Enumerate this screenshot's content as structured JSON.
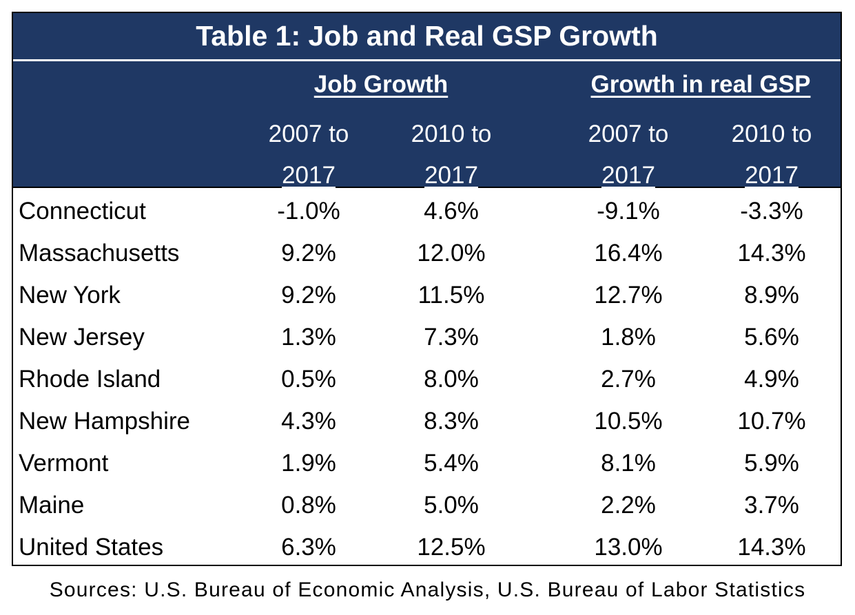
{
  "chart_data": {
    "type": "table",
    "title": "Table 1: Job and Real GSP Growth",
    "groups": [
      {
        "label": "Job Growth",
        "columns": [
          "2007 to 2017",
          "2010 to 2017"
        ]
      },
      {
        "label": "Growth in real GSP",
        "columns": [
          "2007 to 2017",
          "2010 to 2017"
        ]
      }
    ],
    "column_labels": [
      {
        "line1": "2007 to",
        "line2": "2017"
      },
      {
        "line1": "2010 to",
        "line2": "2017"
      },
      {
        "line1": "2007 to",
        "line2": "2017"
      },
      {
        "line1": "2010 to",
        "line2": "2017"
      }
    ],
    "rows": [
      {
        "state": "Connecticut",
        "values": [
          "-1.0%",
          "4.6%",
          "-9.1%",
          "-3.3%"
        ]
      },
      {
        "state": "Massachusetts",
        "values": [
          "9.2%",
          "12.0%",
          "16.4%",
          "14.3%"
        ]
      },
      {
        "state": "New York",
        "values": [
          "9.2%",
          "11.5%",
          "12.7%",
          "8.9%"
        ]
      },
      {
        "state": "New Jersey",
        "values": [
          "1.3%",
          "7.3%",
          "1.8%",
          "5.6%"
        ]
      },
      {
        "state": "Rhode Island",
        "values": [
          "0.5%",
          "8.0%",
          "2.7%",
          "4.9%"
        ]
      },
      {
        "state": "New Hampshire",
        "values": [
          "4.3%",
          "8.3%",
          "10.5%",
          "10.7%"
        ]
      },
      {
        "state": "Vermont",
        "values": [
          "1.9%",
          "5.4%",
          "8.1%",
          "5.9%"
        ]
      },
      {
        "state": "Maine",
        "values": [
          "0.8%",
          "5.0%",
          "2.2%",
          "3.7%"
        ]
      },
      {
        "state": "United States",
        "values": [
          "6.3%",
          "12.5%",
          "13.0%",
          "14.3%"
        ]
      }
    ],
    "source": "Sources: U.S. Bureau of Economic Analysis, U.S. Bureau of Labor Statistics"
  },
  "colors": {
    "header_bg": "#1f3864",
    "header_text": "#ffffff"
  }
}
